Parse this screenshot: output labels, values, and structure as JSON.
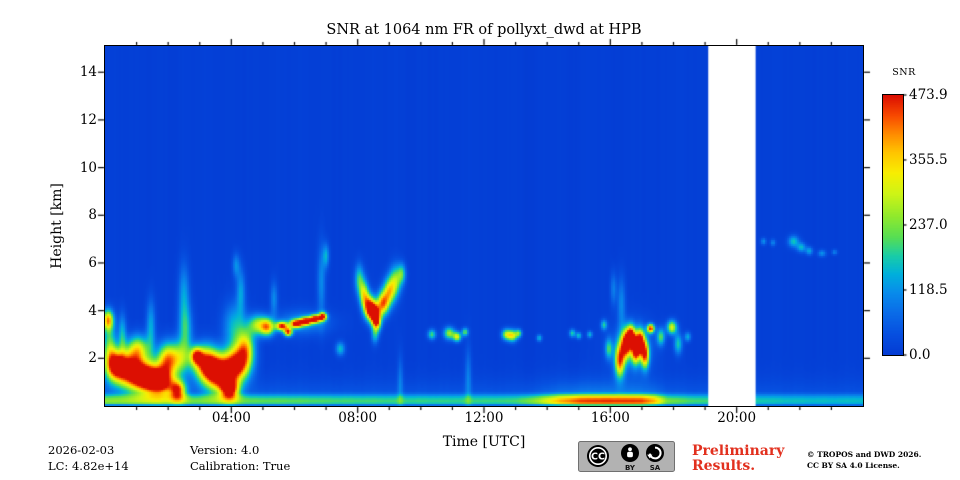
{
  "chart_data": {
    "type": "heatmap",
    "title": "SNR at 1064 nm FR of pollyxt_dwd at HPB",
    "xlabel": "Time [UTC]",
    "ylabel": "Height [km]",
    "x_range_hours": [
      0,
      24
    ],
    "y_range_km": [
      0,
      15.1
    ],
    "grid": false,
    "x_ticks": [
      {
        "v": 4,
        "label": "04:00"
      },
      {
        "v": 8,
        "label": "08:00"
      },
      {
        "v": 12,
        "label": "12:00"
      },
      {
        "v": 16,
        "label": "16:00"
      },
      {
        "v": 20,
        "label": "20:00"
      }
    ],
    "x_minor_every_hours": 1,
    "y_ticks": [
      {
        "v": 2,
        "label": "2"
      },
      {
        "v": 4,
        "label": "4"
      },
      {
        "v": 6,
        "label": "6"
      },
      {
        "v": 8,
        "label": "8"
      },
      {
        "v": 10,
        "label": "10"
      },
      {
        "v": 12,
        "label": "12"
      },
      {
        "v": 14,
        "label": "14"
      }
    ],
    "colorbar": {
      "label": "SNR",
      "vmin": 0.0,
      "vmax": 473.9,
      "ticks": [
        {
          "v": 473.9,
          "label": "473.9"
        },
        {
          "v": 355.5,
          "label": "355.5"
        },
        {
          "v": 237.0,
          "label": "237.0"
        },
        {
          "v": 118.5,
          "label": "118.5"
        },
        {
          "v": 0.0,
          "label": "0.0"
        }
      ]
    },
    "colormap_stops": [
      [
        0.0,
        [
          4,
          60,
          212
        ]
      ],
      [
        0.08,
        [
          6,
          80,
          224
        ]
      ],
      [
        0.16,
        [
          10,
          108,
          232
        ]
      ],
      [
        0.24,
        [
          8,
          140,
          235
        ]
      ],
      [
        0.31,
        [
          0,
          176,
          220
        ]
      ],
      [
        0.38,
        [
          25,
          204,
          168
        ]
      ],
      [
        0.45,
        [
          85,
          222,
          85
        ]
      ],
      [
        0.53,
        [
          142,
          233,
          46
        ]
      ],
      [
        0.62,
        [
          206,
          244,
          22
        ]
      ],
      [
        0.7,
        [
          248,
          238,
          2
        ]
      ],
      [
        0.78,
        [
          255,
          196,
          0
        ]
      ],
      [
        0.85,
        [
          255,
          140,
          0
        ]
      ],
      [
        0.92,
        [
          248,
          75,
          0
        ]
      ],
      [
        1.0,
        [
          220,
          15,
          2
        ]
      ]
    ],
    "missing_data_interval_hours": [
      19.1,
      20.6
    ],
    "background_value": 7,
    "surface_profile": [
      [
        0,
        245
      ],
      [
        1.5,
        235
      ],
      [
        3,
        225
      ],
      [
        5,
        215
      ],
      [
        7,
        205
      ],
      [
        9,
        195
      ],
      [
        11,
        190
      ],
      [
        13,
        200
      ],
      [
        13.7,
        265
      ],
      [
        14.4,
        385
      ],
      [
        15,
        450
      ],
      [
        16,
        465
      ],
      [
        17,
        455
      ],
      [
        17.4,
        385
      ],
      [
        17.8,
        235
      ],
      [
        18.5,
        205
      ],
      [
        19.1,
        195
      ],
      [
        20.6,
        175
      ],
      [
        21.5,
        165
      ],
      [
        23,
        160
      ],
      [
        24,
        160
      ]
    ],
    "feature_format": "[time_h, height_km, sigma_t_h, sigma_h_km, amplitude_snr]",
    "features": [
      [
        0.1,
        3.6,
        0.12,
        0.3,
        360
      ],
      [
        0.15,
        2.4,
        0.15,
        0.7,
        220
      ],
      [
        0.35,
        1.7,
        0.22,
        0.45,
        420
      ],
      [
        0.55,
        3.0,
        0.09,
        0.6,
        150
      ],
      [
        0.8,
        1.5,
        0.3,
        0.5,
        470
      ],
      [
        1.05,
        2.4,
        0.25,
        0.4,
        280
      ],
      [
        1.3,
        1.2,
        0.3,
        0.45,
        475
      ],
      [
        1.45,
        3.3,
        0.1,
        0.8,
        140
      ],
      [
        1.75,
        1.0,
        0.28,
        0.4,
        465
      ],
      [
        1.95,
        1.9,
        0.22,
        0.5,
        330
      ],
      [
        2.3,
        0.65,
        0.18,
        0.3,
        400
      ],
      [
        2.35,
        2.0,
        0.25,
        0.5,
        240
      ],
      [
        2.5,
        4.7,
        0.12,
        0.9,
        120
      ],
      [
        2.55,
        3.2,
        0.15,
        0.7,
        160
      ],
      [
        2.9,
        2.1,
        0.13,
        0.25,
        330
      ],
      [
        3.2,
        1.8,
        0.28,
        0.5,
        440
      ],
      [
        3.6,
        1.35,
        0.3,
        0.5,
        478
      ],
      [
        3.95,
        0.7,
        0.2,
        0.3,
        430
      ],
      [
        4.15,
        1.7,
        0.28,
        0.5,
        455
      ],
      [
        4.45,
        2.4,
        0.2,
        0.55,
        310
      ],
      [
        4.1,
        3.3,
        0.25,
        0.7,
        150
      ],
      [
        4.3,
        4.8,
        0.1,
        0.7,
        125
      ],
      [
        4.15,
        5.9,
        0.08,
        0.35,
        105
      ],
      [
        4.85,
        3.4,
        0.22,
        0.3,
        255
      ],
      [
        5.15,
        3.3,
        0.15,
        0.25,
        305
      ],
      [
        5.35,
        4.5,
        0.08,
        0.5,
        105
      ],
      [
        5.6,
        3.35,
        0.13,
        0.13,
        430
      ],
      [
        5.8,
        3.1,
        0.09,
        0.12,
        415
      ],
      [
        6.05,
        3.45,
        0.13,
        0.12,
        445
      ],
      [
        6.35,
        3.55,
        0.13,
        0.12,
        440
      ],
      [
        6.65,
        3.65,
        0.12,
        0.12,
        455
      ],
      [
        6.9,
        3.75,
        0.09,
        0.12,
        430
      ],
      [
        6.25,
        3.5,
        0.6,
        0.35,
        110
      ],
      [
        6.85,
        5.2,
        0.09,
        1.1,
        105
      ],
      [
        7.0,
        6.3,
        0.07,
        0.35,
        135
      ],
      [
        7.45,
        2.4,
        0.1,
        0.2,
        160
      ],
      [
        8.05,
        5.3,
        0.1,
        0.45,
        190
      ],
      [
        8.2,
        4.7,
        0.1,
        0.4,
        270
      ],
      [
        8.35,
        4.2,
        0.12,
        0.35,
        360
      ],
      [
        8.5,
        3.95,
        0.13,
        0.3,
        455
      ],
      [
        8.6,
        3.55,
        0.1,
        0.28,
        420
      ],
      [
        8.8,
        4.3,
        0.13,
        0.35,
        380
      ],
      [
        9.0,
        4.8,
        0.13,
        0.4,
        300
      ],
      [
        9.2,
        5.25,
        0.13,
        0.45,
        235
      ],
      [
        9.4,
        5.55,
        0.09,
        0.3,
        175
      ],
      [
        8.55,
        2.95,
        0.08,
        0.25,
        140
      ],
      [
        9.35,
        1.0,
        0.06,
        0.8,
        80
      ],
      [
        10.35,
        3.0,
        0.09,
        0.15,
        200
      ],
      [
        10.9,
        3.05,
        0.12,
        0.18,
        260
      ],
      [
        11.15,
        2.9,
        0.09,
        0.14,
        300
      ],
      [
        11.4,
        3.1,
        0.07,
        0.12,
        215
      ],
      [
        11.5,
        1.2,
        0.07,
        0.9,
        85
      ],
      [
        12.7,
        3.0,
        0.1,
        0.16,
        245
      ],
      [
        12.9,
        2.95,
        0.11,
        0.17,
        310
      ],
      [
        13.1,
        3.05,
        0.07,
        0.12,
        205
      ],
      [
        13.75,
        2.85,
        0.06,
        0.1,
        155
      ],
      [
        14.8,
        3.05,
        0.07,
        0.12,
        185
      ],
      [
        15.0,
        2.95,
        0.06,
        0.1,
        170
      ],
      [
        15.35,
        3.0,
        0.06,
        0.1,
        150
      ],
      [
        15.8,
        3.4,
        0.07,
        0.15,
        175
      ],
      [
        15.95,
        2.4,
        0.08,
        0.3,
        180
      ],
      [
        16.3,
        1.9,
        0.11,
        0.5,
        395
      ],
      [
        16.5,
        2.6,
        0.11,
        0.4,
        440
      ],
      [
        16.65,
        2.95,
        0.09,
        0.3,
        430
      ],
      [
        16.8,
        2.35,
        0.09,
        0.4,
        425
      ],
      [
        16.95,
        2.7,
        0.09,
        0.35,
        445
      ],
      [
        17.1,
        2.15,
        0.09,
        0.4,
        400
      ],
      [
        17.28,
        3.25,
        0.08,
        0.13,
        445
      ],
      [
        16.7,
        2.5,
        0.45,
        0.7,
        115
      ],
      [
        16.35,
        4.3,
        0.09,
        0.8,
        105
      ],
      [
        16.1,
        4.9,
        0.07,
        0.5,
        95
      ],
      [
        17.6,
        2.9,
        0.09,
        0.25,
        200
      ],
      [
        17.95,
        3.3,
        0.11,
        0.2,
        300
      ],
      [
        18.15,
        2.6,
        0.09,
        0.3,
        170
      ],
      [
        18.45,
        2.9,
        0.07,
        0.14,
        140
      ],
      [
        20.85,
        6.9,
        0.06,
        0.1,
        115
      ],
      [
        21.15,
        6.85,
        0.06,
        0.1,
        100
      ],
      [
        21.8,
        6.9,
        0.12,
        0.17,
        165
      ],
      [
        22.05,
        6.65,
        0.1,
        0.14,
        150
      ],
      [
        22.3,
        6.5,
        0.08,
        0.12,
        135
      ],
      [
        22.7,
        6.4,
        0.09,
        0.1,
        115
      ],
      [
        23.1,
        6.45,
        0.06,
        0.08,
        100
      ]
    ],
    "shadow_columns": [
      [
        2.2,
        0.12,
        3
      ],
      [
        9.7,
        0.12,
        3
      ],
      [
        12.3,
        0.15,
        4
      ],
      [
        13.5,
        0.18,
        4
      ],
      [
        14.8,
        0.22,
        4.5
      ],
      [
        16.1,
        0.12,
        4
      ],
      [
        17.45,
        0.1,
        4
      ]
    ]
  },
  "footer": {
    "date": "2026-02-03",
    "lidar_constant": "LC: 4.82e+14",
    "version": "Version: 4.0",
    "calibration": "Calibration: True",
    "preliminary_line1": "Preliminary",
    "preliminary_line2": "Results.",
    "preliminary_color": "#e2301e",
    "copyright_line1": "© TROPOS and DWD 2026.",
    "copyright_line2": "CC BY SA 4.0 License."
  },
  "cc_badge": {
    "cc_text": "CC",
    "by_text": "BY",
    "sa_text": "SA"
  }
}
